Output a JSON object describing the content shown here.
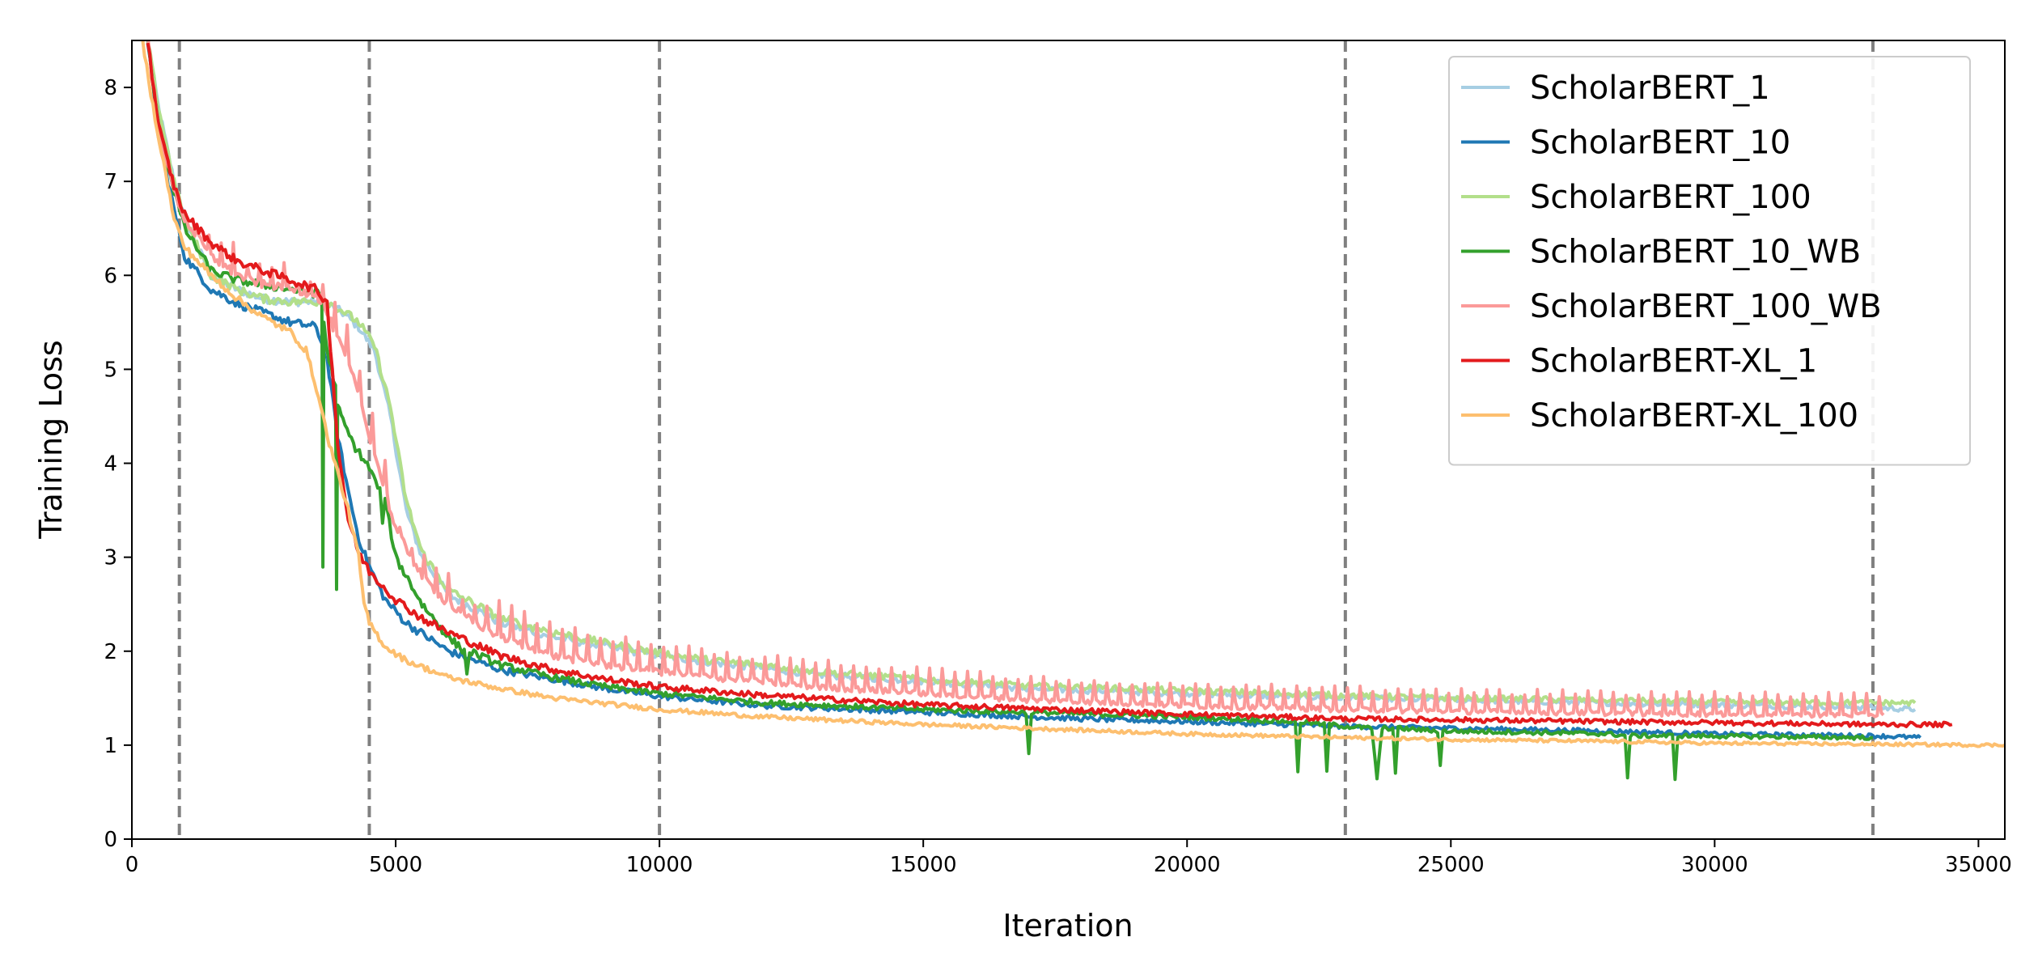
{
  "chart_data": {
    "type": "line",
    "title": "",
    "xlabel": "Iteration",
    "ylabel": "Training Loss",
    "xlim": [
      0,
      35500
    ],
    "ylim": [
      0,
      8.5
    ],
    "xticks": [
      0,
      5000,
      10000,
      15000,
      20000,
      25000,
      30000,
      35000
    ],
    "xtick_labels": [
      "0",
      "5000",
      "10000",
      "15000",
      "20000",
      "25000",
      "30000",
      "35000"
    ],
    "yticks": [
      0,
      1,
      2,
      3,
      4,
      5,
      6,
      7,
      8
    ],
    "ytick_labels": [
      "0",
      "1",
      "2",
      "3",
      "4",
      "5",
      "6",
      "7",
      "8"
    ],
    "grid": false,
    "legend_position": "top-right",
    "vertical_lines": [
      900,
      4500,
      10000,
      23000,
      33000
    ],
    "vertical_line_style": {
      "color": "#808080",
      "dash": "dashed"
    },
    "series": [
      {
        "name": "ScholarBERT_1",
        "color": "#a6cee3",
        "noise": 0.03,
        "x": [
          300,
          500,
          800,
          1000,
          1500,
          2000,
          2500,
          3000,
          3500,
          3700,
          4000,
          4300,
          4600,
          4900,
          5200,
          5500,
          6000,
          6500,
          7000,
          8000,
          9000,
          10000,
          11000,
          12000,
          13000,
          15000,
          17000,
          20000,
          23000,
          25000,
          28000,
          30000,
          33000,
          33800
        ],
        "y": [
          8.5,
          7.8,
          7.0,
          6.6,
          6.0,
          5.85,
          5.75,
          5.72,
          5.72,
          5.7,
          5.6,
          5.45,
          5.2,
          4.5,
          3.5,
          3.0,
          2.6,
          2.45,
          2.3,
          2.15,
          2.05,
          1.95,
          1.88,
          1.82,
          1.75,
          1.68,
          1.6,
          1.55,
          1.5,
          1.48,
          1.45,
          1.43,
          1.4,
          1.38
        ]
      },
      {
        "name": "ScholarBERT_10",
        "color": "#1f78b4",
        "noise": 0.03,
        "x": [
          300,
          500,
          800,
          1000,
          1500,
          2000,
          2500,
          3000,
          3500,
          3700,
          3900,
          4100,
          4300,
          4500,
          4800,
          5200,
          6000,
          7000,
          8000,
          9000,
          10000,
          12000,
          15000,
          18000,
          20000,
          23000,
          25000,
          28000,
          30000,
          33000,
          33900
        ],
        "y": [
          8.5,
          7.5,
          6.7,
          6.2,
          5.85,
          5.7,
          5.6,
          5.5,
          5.45,
          5.1,
          4.3,
          3.7,
          3.2,
          2.9,
          2.55,
          2.3,
          2.0,
          1.8,
          1.7,
          1.6,
          1.52,
          1.42,
          1.35,
          1.28,
          1.25,
          1.2,
          1.18,
          1.15,
          1.12,
          1.1,
          1.08
        ]
      },
      {
        "name": "ScholarBERT_100",
        "color": "#b2df8a",
        "noise": 0.03,
        "x": [
          300,
          500,
          800,
          1000,
          1500,
          2000,
          2500,
          3000,
          3500,
          3700,
          4000,
          4300,
          4600,
          4900,
          5200,
          5500,
          6000,
          6500,
          7000,
          8000,
          9000,
          10000,
          11000,
          12000,
          13000,
          15000,
          17000,
          20000,
          23000,
          25000,
          28000,
          30000,
          33000,
          33800
        ],
        "y": [
          8.5,
          7.8,
          7.0,
          6.6,
          6.0,
          5.85,
          5.75,
          5.72,
          5.72,
          5.72,
          5.62,
          5.5,
          5.25,
          4.6,
          3.6,
          3.05,
          2.65,
          2.5,
          2.35,
          2.2,
          2.08,
          1.98,
          1.9,
          1.85,
          1.78,
          1.7,
          1.63,
          1.58,
          1.53,
          1.5,
          1.48,
          1.46,
          1.45,
          1.45
        ]
      },
      {
        "name": "ScholarBERT_10_WB",
        "color": "#33a02c",
        "noise": 0.03,
        "x": [
          300,
          500,
          800,
          1000,
          1500,
          2000,
          2500,
          3000,
          3600,
          3620,
          3640,
          3700,
          3860,
          3880,
          3900,
          4000,
          4200,
          4500,
          4700,
          4750,
          4800,
          5000,
          5500,
          6000,
          6300,
          6350,
          6400,
          7000,
          8000,
          9000,
          10000,
          12000,
          15000,
          16950,
          17000,
          17050,
          20000,
          22050,
          22100,
          22150,
          22600,
          22650,
          22700,
          23000,
          23500,
          23600,
          23700,
          23900,
          23950,
          24000,
          24750,
          24800,
          24850,
          25000,
          28000,
          28300,
          28350,
          28400,
          29200,
          29250,
          29300,
          33000
        ],
        "y": [
          8.5,
          7.6,
          6.9,
          6.5,
          6.05,
          5.95,
          5.9,
          5.85,
          5.8,
          2.9,
          5.5,
          5.2,
          4.8,
          2.7,
          4.6,
          4.45,
          4.2,
          3.95,
          3.7,
          3.4,
          3.6,
          3.0,
          2.5,
          2.15,
          2.0,
          1.75,
          2.0,
          1.85,
          1.72,
          1.62,
          1.55,
          1.45,
          1.38,
          1.35,
          0.9,
          1.35,
          1.3,
          1.25,
          0.72,
          1.25,
          1.22,
          0.72,
          1.22,
          1.2,
          1.18,
          0.65,
          1.18,
          1.18,
          0.7,
          1.18,
          1.15,
          0.78,
          1.15,
          1.15,
          1.12,
          1.1,
          0.65,
          1.1,
          1.1,
          0.63,
          1.1,
          1.08
        ]
      },
      {
        "name": "ScholarBERT_100_WB",
        "color": "#fb9a99",
        "noise": 0.03,
        "spike_amp": 0.35,
        "spike_period": 240,
        "spike_start": 1200,
        "x": [
          300,
          500,
          800,
          1000,
          1500,
          2000,
          2500,
          3000,
          3500,
          3700,
          4000,
          4200,
          4400,
          4600,
          4800,
          5000,
          5500,
          6000,
          6500,
          7000,
          8000,
          9000,
          10000,
          11000,
          12000,
          13000,
          15000,
          17000,
          20000,
          23000,
          25000,
          28000,
          30000,
          33200
        ],
        "y": [
          8.5,
          7.6,
          6.9,
          6.6,
          6.2,
          6.0,
          5.9,
          5.85,
          5.8,
          5.6,
          5.2,
          4.9,
          4.5,
          4.1,
          3.7,
          3.3,
          2.8,
          2.5,
          2.3,
          2.15,
          1.95,
          1.85,
          1.78,
          1.72,
          1.67,
          1.62,
          1.55,
          1.48,
          1.42,
          1.38,
          1.36,
          1.34,
          1.33,
          1.32
        ]
      },
      {
        "name": "ScholarBERT-XL_1",
        "color": "#e31a1c",
        "noise": 0.03,
        "x": [
          300,
          500,
          800,
          1000,
          1500,
          2000,
          2500,
          3000,
          3500,
          3700,
          3800,
          3900,
          4100,
          4300,
          4500,
          5000,
          5500,
          6000,
          7000,
          8000,
          9000,
          10000,
          12000,
          15000,
          18000,
          20000,
          23000,
          25000,
          28000,
          30000,
          33000,
          34500
        ],
        "y": [
          8.5,
          7.6,
          6.95,
          6.65,
          6.35,
          6.15,
          6.05,
          5.95,
          5.85,
          5.7,
          5.0,
          4.2,
          3.4,
          3.05,
          2.85,
          2.55,
          2.35,
          2.2,
          1.95,
          1.8,
          1.7,
          1.62,
          1.53,
          1.43,
          1.37,
          1.33,
          1.28,
          1.27,
          1.25,
          1.24,
          1.22,
          1.22
        ]
      },
      {
        "name": "ScholarBERT-XL_100",
        "color": "#fdbf6f",
        "noise": 0.025,
        "x": [
          200,
          400,
          600,
          800,
          1000,
          1500,
          2000,
          2500,
          3000,
          3300,
          3500,
          3700,
          3900,
          4100,
          4300,
          4400,
          4500,
          4800,
          5200,
          6000,
          7000,
          8000,
          10000,
          12000,
          15000,
          18000,
          20000,
          23000,
          25000,
          28000,
          30000,
          33000,
          35500
        ],
        "y": [
          8.5,
          7.8,
          7.2,
          6.6,
          6.3,
          6.0,
          5.75,
          5.55,
          5.4,
          5.2,
          4.8,
          4.3,
          3.9,
          3.5,
          3.0,
          2.5,
          2.3,
          2.05,
          1.9,
          1.72,
          1.6,
          1.5,
          1.38,
          1.3,
          1.22,
          1.16,
          1.12,
          1.08,
          1.06,
          1.04,
          1.02,
          1.01,
          1.0
        ]
      }
    ]
  }
}
